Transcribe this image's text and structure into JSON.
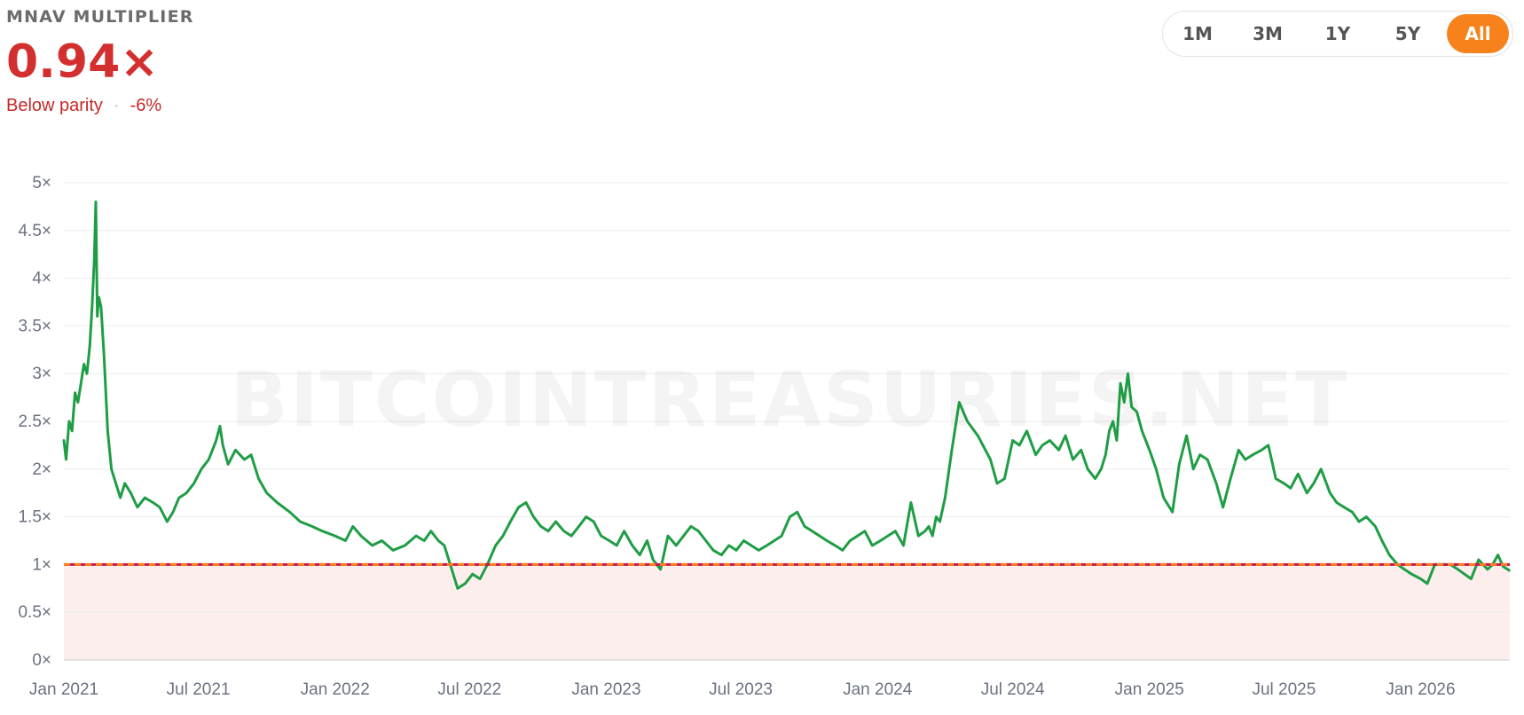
{
  "header": {
    "title": "MNAV MULTIPLIER",
    "value": "0.94×",
    "status": "Below parity",
    "change": "-6%"
  },
  "ranges": {
    "items": [
      "1M",
      "3M",
      "1Y",
      "5Y",
      "All"
    ],
    "active": "All"
  },
  "watermark": "BITCOINTREASURIES.NET",
  "colors": {
    "line": "#1f9d45",
    "parity_line_a": "#f7821b",
    "parity_line_b": "#c2185b",
    "below_parity_fill": "#fdeeee",
    "negative": "#d32f2f",
    "accent": "#f7821b"
  },
  "chart_data": {
    "type": "line",
    "title": "",
    "xlabel": "",
    "ylabel": "",
    "ylim": [
      0,
      5
    ],
    "xlim": [
      "2021-01-01",
      "2026-05-01"
    ],
    "y_ticks": [
      {
        "value": 0,
        "label": "0×"
      },
      {
        "value": 0.5,
        "label": "0.5×"
      },
      {
        "value": 1,
        "label": "1×"
      },
      {
        "value": 1.5,
        "label": "1.5×"
      },
      {
        "value": 2,
        "label": "2×"
      },
      {
        "value": 2.5,
        "label": "2.5×"
      },
      {
        "value": 3,
        "label": "3×"
      },
      {
        "value": 3.5,
        "label": "3.5×"
      },
      {
        "value": 4,
        "label": "4×"
      },
      {
        "value": 4.5,
        "label": "4.5×"
      },
      {
        "value": 5,
        "label": "5×"
      }
    ],
    "x_ticks": [
      {
        "value": "2021-01-01",
        "label": "Jan 2021"
      },
      {
        "value": "2021-07-01",
        "label": "Jul 2021"
      },
      {
        "value": "2022-01-01",
        "label": "Jan 2022"
      },
      {
        "value": "2022-07-01",
        "label": "Jul 2022"
      },
      {
        "value": "2023-01-01",
        "label": "Jan 2023"
      },
      {
        "value": "2023-07-01",
        "label": "Jul 2023"
      },
      {
        "value": "2024-01-01",
        "label": "Jan 2024"
      },
      {
        "value": "2024-07-01",
        "label": "Jul 2024"
      },
      {
        "value": "2025-01-01",
        "label": "Jan 2025"
      },
      {
        "value": "2025-07-01",
        "label": "Jul 2025"
      },
      {
        "value": "2026-01-01",
        "label": "Jan 2026"
      }
    ],
    "grid": true,
    "reference_line": {
      "y": 1,
      "style": "dashed"
    },
    "shaded_region": {
      "y_from": 0,
      "y_to": 1
    },
    "series": [
      {
        "x": [
          "2021-01-01",
          "2021-01-04",
          "2021-01-08",
          "2021-01-12",
          "2021-01-16",
          "2021-01-20",
          "2021-01-24",
          "2021-01-28",
          "2021-02-01",
          "2021-02-05",
          "2021-02-08",
          "2021-02-11",
          "2021-02-13",
          "2021-02-15",
          "2021-02-17",
          "2021-02-20",
          "2021-02-24",
          "2021-03-01",
          "2021-03-06",
          "2021-03-12",
          "2021-03-18",
          "2021-03-24",
          "2021-04-01",
          "2021-04-10",
          "2021-04-20",
          "2021-05-01",
          "2021-05-10",
          "2021-05-20",
          "2021-05-28",
          "2021-06-05",
          "2021-06-15",
          "2021-06-25",
          "2021-07-05",
          "2021-07-15",
          "2021-07-25",
          "2021-07-30",
          "2021-08-03",
          "2021-08-10",
          "2021-08-20",
          "2021-09-01",
          "2021-09-10",
          "2021-09-20",
          "2021-10-01",
          "2021-10-15",
          "2021-11-01",
          "2021-11-15",
          "2021-12-01",
          "2021-12-15",
          "2022-01-01",
          "2022-01-15",
          "2022-01-25",
          "2022-02-05",
          "2022-02-20",
          "2022-03-05",
          "2022-03-20",
          "2022-04-05",
          "2022-04-20",
          "2022-05-01",
          "2022-05-10",
          "2022-05-20",
          "2022-05-28",
          "2022-06-05",
          "2022-06-15",
          "2022-06-25",
          "2022-07-05",
          "2022-07-15",
          "2022-07-25",
          "2022-08-05",
          "2022-08-15",
          "2022-08-25",
          "2022-09-05",
          "2022-09-15",
          "2022-09-25",
          "2022-10-05",
          "2022-10-15",
          "2022-10-25",
          "2022-11-05",
          "2022-11-15",
          "2022-11-25",
          "2022-12-05",
          "2022-12-15",
          "2022-12-25",
          "2023-01-05",
          "2023-01-15",
          "2023-01-25",
          "2023-02-05",
          "2023-02-15",
          "2023-02-25",
          "2023-03-05",
          "2023-03-15",
          "2023-03-25",
          "2023-04-05",
          "2023-04-15",
          "2023-04-25",
          "2023-05-05",
          "2023-05-15",
          "2023-05-25",
          "2023-06-05",
          "2023-06-15",
          "2023-06-25",
          "2023-07-05",
          "2023-07-15",
          "2023-07-25",
          "2023-08-05",
          "2023-08-15",
          "2023-08-25",
          "2023-09-05",
          "2023-09-15",
          "2023-09-25",
          "2023-10-05",
          "2023-10-15",
          "2023-10-25",
          "2023-11-05",
          "2023-11-15",
          "2023-11-25",
          "2023-12-05",
          "2023-12-15",
          "2023-12-25",
          "2024-01-05",
          "2024-01-15",
          "2024-01-25",
          "2024-02-05",
          "2024-02-15",
          "2024-02-25",
          "2024-03-05",
          "2024-03-10",
          "2024-03-15",
          "2024-03-20",
          "2024-03-25",
          "2024-04-01",
          "2024-04-10",
          "2024-04-20",
          "2024-05-01",
          "2024-05-15",
          "2024-06-01",
          "2024-06-10",
          "2024-06-20",
          "2024-07-01",
          "2024-07-10",
          "2024-07-20",
          "2024-08-01",
          "2024-08-10",
          "2024-08-20",
          "2024-09-01",
          "2024-09-10",
          "2024-09-20",
          "2024-10-01",
          "2024-10-10",
          "2024-10-20",
          "2024-10-28",
          "2024-11-03",
          "2024-11-08",
          "2024-11-13",
          "2024-11-18",
          "2024-11-23",
          "2024-11-28",
          "2024-12-03",
          "2024-12-08",
          "2024-12-15",
          "2024-12-22",
          "2025-01-01",
          "2025-01-10",
          "2025-01-20",
          "2025-02-01",
          "2025-02-10",
          "2025-02-20",
          "2025-03-01",
          "2025-03-10",
          "2025-03-20",
          "2025-04-01",
          "2025-04-10",
          "2025-04-20",
          "2025-05-01",
          "2025-05-10",
          "2025-05-20",
          "2025-06-01",
          "2025-06-10",
          "2025-06-20",
          "2025-07-01",
          "2025-07-10",
          "2025-07-20",
          "2025-08-01",
          "2025-08-10",
          "2025-08-20",
          "2025-09-01",
          "2025-09-10",
          "2025-09-20",
          "2025-10-01",
          "2025-10-10",
          "2025-10-20",
          "2025-11-01",
          "2025-11-10",
          "2025-11-20",
          "2025-12-01",
          "2025-12-10",
          "2025-12-20",
          "2026-01-01",
          "2026-01-10",
          "2026-01-20",
          "2026-02-01",
          "2026-02-10",
          "2026-02-20",
          "2026-03-01",
          "2026-03-10",
          "2026-03-20",
          "2026-04-01",
          "2026-04-08",
          "2026-04-15",
          "2026-04-22",
          "2026-04-30"
        ],
        "y": [
          2.3,
          2.1,
          2.5,
          2.4,
          2.8,
          2.7,
          2.9,
          3.1,
          3.0,
          3.3,
          3.7,
          4.2,
          4.8,
          3.6,
          3.8,
          3.7,
          3.2,
          2.4,
          2.0,
          1.85,
          1.7,
          1.85,
          1.75,
          1.6,
          1.7,
          1.65,
          1.6,
          1.45,
          1.55,
          1.7,
          1.75,
          1.85,
          2.0,
          2.1,
          2.3,
          2.45,
          2.25,
          2.05,
          2.2,
          2.1,
          2.15,
          1.9,
          1.75,
          1.65,
          1.55,
          1.45,
          1.4,
          1.35,
          1.3,
          1.25,
          1.4,
          1.3,
          1.2,
          1.25,
          1.15,
          1.2,
          1.3,
          1.25,
          1.35,
          1.25,
          1.2,
          1.0,
          0.75,
          0.8,
          0.9,
          0.85,
          1.0,
          1.2,
          1.3,
          1.45,
          1.6,
          1.65,
          1.5,
          1.4,
          1.35,
          1.45,
          1.35,
          1.3,
          1.4,
          1.5,
          1.45,
          1.3,
          1.25,
          1.2,
          1.35,
          1.2,
          1.1,
          1.25,
          1.05,
          0.95,
          1.3,
          1.2,
          1.3,
          1.4,
          1.35,
          1.25,
          1.15,
          1.1,
          1.2,
          1.15,
          1.25,
          1.2,
          1.15,
          1.2,
          1.25,
          1.3,
          1.5,
          1.55,
          1.4,
          1.35,
          1.3,
          1.25,
          1.2,
          1.15,
          1.25,
          1.3,
          1.35,
          1.2,
          1.25,
          1.3,
          1.35,
          1.2,
          1.65,
          1.3,
          1.35,
          1.4,
          1.3,
          1.5,
          1.45,
          1.7,
          2.2,
          2.7,
          2.5,
          2.35,
          2.1,
          1.85,
          1.9,
          2.3,
          2.25,
          2.4,
          2.15,
          2.25,
          2.3,
          2.2,
          2.35,
          2.1,
          2.2,
          2.0,
          1.9,
          2.0,
          2.15,
          2.4,
          2.5,
          2.3,
          2.9,
          2.7,
          3.0,
          2.65,
          2.6,
          2.4,
          2.2,
          2.0,
          1.7,
          1.55,
          2.05,
          2.35,
          2.0,
          2.15,
          2.1,
          1.85,
          1.6,
          1.9,
          2.2,
          2.1,
          2.15,
          2.2,
          2.25,
          1.9,
          1.85,
          1.8,
          1.95,
          1.75,
          1.85,
          2.0,
          1.75,
          1.65,
          1.6,
          1.55,
          1.45,
          1.5,
          1.4,
          1.25,
          1.1,
          1.0,
          0.95,
          0.9,
          0.85,
          0.8,
          1.0,
          1.0,
          1.0,
          0.95,
          0.9,
          0.85,
          1.05,
          0.95,
          1.0,
          1.1,
          0.98,
          0.94
        ]
      }
    ]
  }
}
